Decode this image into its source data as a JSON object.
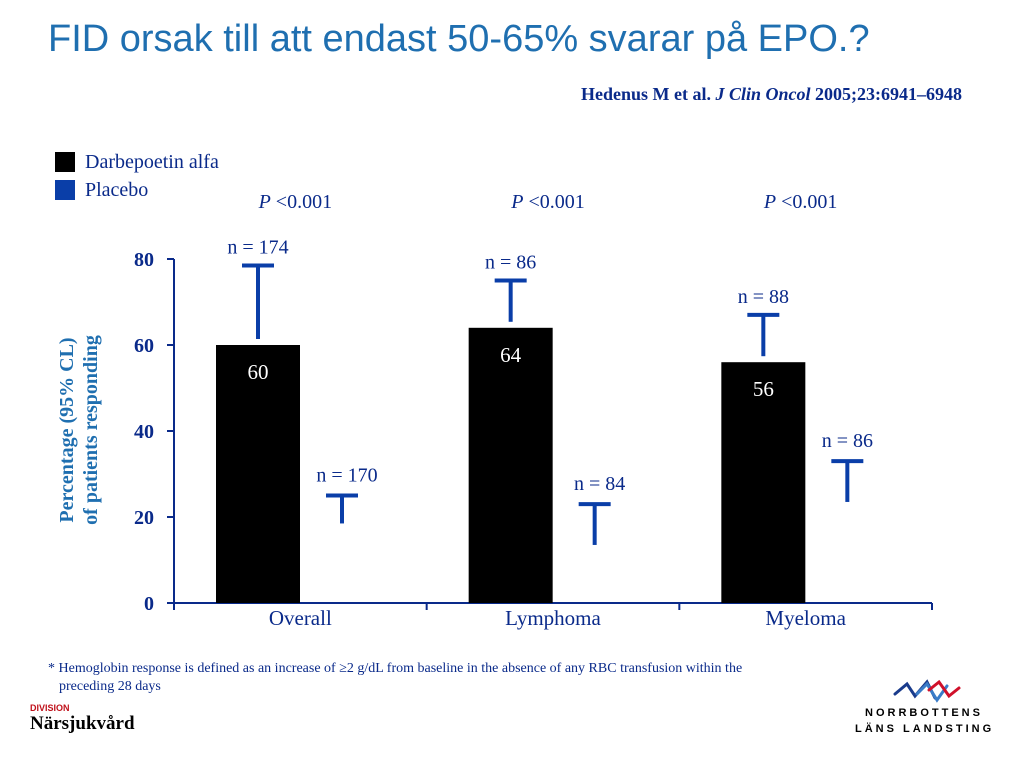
{
  "title": "FID orsak till att endast 50-65% svarar på EPO.?",
  "citation": {
    "authors": "Hedenus M  et al.",
    "journal": "J Clin Oncol",
    "ref": "2005;23:6941–6948"
  },
  "legend": [
    {
      "label": "Darbepoetin alfa",
      "color": "#000000"
    },
    {
      "label": "Placebo",
      "color": "#0a3ea8"
    }
  ],
  "colors": {
    "title": "#1f6fb0",
    "axis": "#0a2a8a",
    "darbepoetin": "#000000",
    "placebo": "#0a3ea8"
  },
  "chart_data": {
    "type": "bar",
    "categories": [
      "Overall",
      "Lymphoma",
      "Myeloma"
    ],
    "ylabel_line1": "Percentage (95% CL)",
    "ylabel_line2": "of patients responding",
    "ylim": [
      0,
      80
    ],
    "yticks": [
      0,
      20,
      40,
      60,
      80
    ],
    "pvalues": [
      "<0.001",
      "<0.001",
      "<0.001"
    ],
    "pvalue_prefix": "P",
    "series": [
      {
        "name": "Darbepoetin alfa",
        "values": [
          60,
          64,
          56
        ],
        "value_labels": [
          "60",
          "64",
          "56"
        ],
        "ci_upper": [
          78.5,
          75,
          67
        ],
        "n_labels": [
          "n = 174",
          "n = 86",
          "n = 88"
        ]
      },
      {
        "name": "Placebo",
        "values": [
          null,
          null,
          null
        ],
        "value_labels": [
          "",
          "",
          ""
        ],
        "ci_upper": [
          25,
          23,
          33
        ],
        "ci_lower": [
          18.5,
          13.5,
          23.5
        ],
        "n_labels": [
          "n = 170",
          "n = 84",
          "n = 86"
        ]
      }
    ]
  },
  "footnote": {
    "line1": "* Hemoglobin response is defined as an increase of ≥2 g/dL from baseline in the absence of any RBC transfusion within the",
    "line2": "preceding 28 days"
  },
  "division": {
    "small": "DIVISION",
    "name": "Närsjukvård"
  },
  "logo": {
    "line1": "NORRBOTTENS",
    "line2": "LÄNS LANDSTING",
    "icon": "northern-lights-logo-icon"
  }
}
